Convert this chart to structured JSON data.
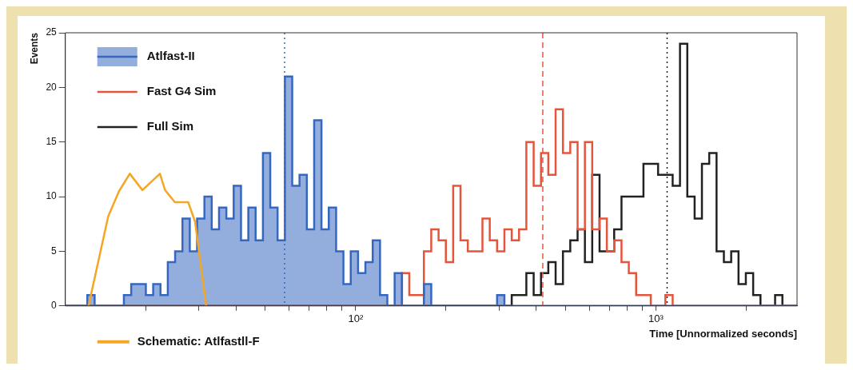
{
  "chart_data": {
    "type": "histogram",
    "ylabel": "Events",
    "xlabel": "Time [Unnormalized seconds]",
    "log": "x",
    "legend": "left",
    "grid": false,
    "xlim": [
      10.8,
      2951
    ],
    "ylim": [
      0,
      25
    ],
    "yticks": [
      0,
      5,
      10,
      15,
      20,
      25
    ],
    "xticks": [
      {
        "value": 20,
        "label": null
      },
      {
        "value": 30,
        "label": null
      },
      {
        "value": 40,
        "label": null
      },
      {
        "value": 50,
        "label": null
      },
      {
        "value": 60,
        "label": null
      },
      {
        "value": 70,
        "label": null
      },
      {
        "value": 80,
        "label": null
      },
      {
        "value": 90,
        "label": null
      },
      {
        "value": 100,
        "label": "10²"
      },
      {
        "value": 200,
        "label": null
      },
      {
        "value": 300,
        "label": null
      },
      {
        "value": 400,
        "label": null
      },
      {
        "value": 500,
        "label": null
      },
      {
        "value": 600,
        "label": null
      },
      {
        "value": 700,
        "label": null
      },
      {
        "value": 800,
        "label": null
      },
      {
        "value": 900,
        "label": null
      },
      {
        "value": 1000,
        "label": "10³"
      },
      {
        "value": 2000,
        "label": null
      }
    ],
    "bins": [
      10.8,
      11.42,
      12.08,
      12.78,
      13.52,
      14.3,
      15.12,
      15.99,
      16.92,
      17.89,
      18.93,
      20.02,
      21.18,
      22.4,
      23.69,
      25.06,
      26.51,
      28.04,
      29.66,
      31.37,
      33.18,
      35.09,
      37.12,
      39.26,
      41.53,
      43.92,
      46.46,
      49.14,
      51.97,
      54.97,
      58.14,
      61.5,
      65.05,
      68.8,
      72.77,
      76.97,
      81.41,
      86.11,
      91.08,
      96.34,
      101.9,
      107.8,
      114,
      120.6,
      127.5,
      134.9,
      142.7,
      150.9,
      159.6,
      168.8,
      178.6,
      188.9,
      199.8,
      211.3,
      223.5,
      236.4,
      250,
      264.5,
      279.7,
      295.9,
      313,
      331,
      350.1,
      370.3,
      391.7,
      414.3,
      438.2,
      463.5,
      490.3,
      518.6,
      548.5,
      580.2,
      613.7,
      649.1,
      686.5,
      726.2,
      768.1,
      812.4,
      859.3,
      908.9,
      961.4,
      1017,
      1075,
      1137,
      1203,
      1272,
      1346,
      1423,
      1505,
      1592,
      1684,
      1781,
      1884,
      1993,
      2108,
      2230,
      2358,
      2494,
      2638,
      2790,
      2951
    ],
    "series": [
      {
        "name": "Atlfast-II",
        "color": "#3567c0",
        "values": [
          0,
          0,
          0,
          1,
          0,
          0,
          0,
          0,
          1,
          2,
          2,
          1,
          2,
          1,
          4,
          5,
          8,
          5,
          8,
          10,
          7,
          9,
          8,
          11,
          6,
          9,
          6,
          14,
          9,
          6,
          21,
          11,
          12,
          7,
          17,
          7,
          9,
          5,
          2,
          5,
          3,
          4,
          6,
          1,
          0,
          3,
          0,
          0,
          0,
          2,
          0,
          0,
          0,
          0,
          0,
          0,
          0,
          0,
          0,
          1,
          0,
          0,
          0,
          0,
          0,
          0,
          0,
          0,
          0,
          0,
          0,
          0,
          0,
          0,
          0,
          0,
          0,
          0,
          0,
          0,
          0,
          0,
          0,
          0,
          0,
          0,
          0,
          0,
          0,
          0,
          0,
          0,
          0,
          0,
          0,
          0,
          0,
          0,
          0,
          0
        ]
      },
      {
        "name": "Fast G4 Sim",
        "color": "#e5553c",
        "values": [
          0,
          0,
          0,
          0,
          0,
          0,
          0,
          0,
          0,
          0,
          0,
          0,
          0,
          0,
          0,
          0,
          0,
          0,
          0,
          0,
          0,
          0,
          0,
          0,
          0,
          0,
          0,
          0,
          0,
          0,
          0,
          0,
          0,
          0,
          0,
          0,
          0,
          0,
          0,
          0,
          0,
          0,
          0,
          0,
          0,
          0,
          3,
          1,
          1,
          5,
          7,
          6,
          4,
          11,
          6,
          5,
          5,
          8,
          6,
          5,
          7,
          6,
          7,
          15,
          11,
          14,
          12,
          18,
          14,
          15,
          7,
          15,
          7,
          8,
          5,
          6,
          4,
          3,
          1,
          1,
          0,
          0,
          1,
          0,
          0,
          0,
          0,
          0,
          0,
          0,
          0,
          0,
          0,
          0,
          0,
          0,
          0,
          0,
          0,
          0
        ]
      },
      {
        "name": "Full Sim",
        "color": "#222222",
        "values": [
          0,
          0,
          0,
          0,
          0,
          0,
          0,
          0,
          0,
          0,
          0,
          0,
          0,
          0,
          0,
          0,
          0,
          0,
          0,
          0,
          0,
          0,
          0,
          0,
          0,
          0,
          0,
          0,
          0,
          0,
          0,
          0,
          0,
          0,
          0,
          0,
          0,
          0,
          0,
          0,
          0,
          0,
          0,
          0,
          0,
          0,
          0,
          0,
          0,
          0,
          0,
          0,
          0,
          0,
          0,
          0,
          0,
          0,
          0,
          0,
          0,
          1,
          1,
          3,
          1,
          3,
          4,
          2,
          5,
          6,
          7,
          4,
          12,
          5,
          5,
          7,
          10,
          10,
          10,
          13,
          13,
          12,
          12,
          11,
          24,
          10,
          8,
          13,
          14,
          5,
          4,
          5,
          2,
          3,
          1,
          0,
          0,
          1,
          0,
          0
        ]
      },
      {
        "name": "Schematic: Atlfastll-F",
        "type": "line",
        "color": "#f5a623",
        "x": [
          12.9,
          15.0,
          16.3,
          17.7,
          19.5,
          22.3,
          23.2,
          25.0,
          27.7,
          29.2,
          31.8
        ],
        "values": [
          0,
          8.2,
          10.5,
          12.1,
          10.6,
          12.1,
          10.6,
          9.5,
          9.5,
          7.7,
          0
        ]
      }
    ],
    "ref_lines": [
      {
        "axis": "x",
        "value": 58,
        "color": "#3567c0",
        "line_style": "dotted"
      },
      {
        "axis": "x",
        "value": 420,
        "color": "#e5553c",
        "line_style": "dashed"
      },
      {
        "axis": "x",
        "value": 1090,
        "color": "#222222",
        "line_style": "dotted"
      }
    ]
  }
}
